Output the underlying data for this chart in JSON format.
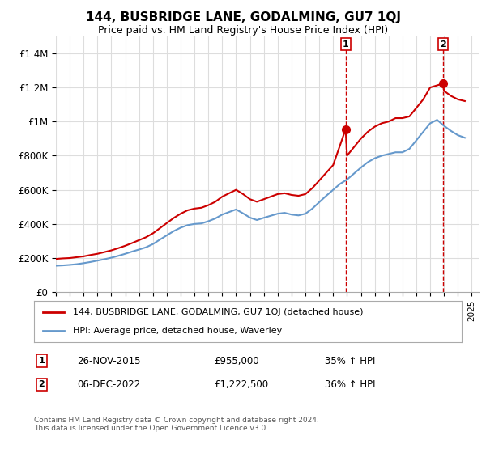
{
  "title": "144, BUSBRIDGE LANE, GODALMING, GU7 1QJ",
  "subtitle": "Price paid vs. HM Land Registry's House Price Index (HPI)",
  "ylabel_ticks": [
    "£0",
    "£200K",
    "£400K",
    "£600K",
    "£800K",
    "£1M",
    "£1.2M",
    "£1.4M"
  ],
  "ytick_values": [
    0,
    200000,
    400000,
    600000,
    800000,
    1000000,
    1200000,
    1400000
  ],
  "ylim": [
    0,
    1500000
  ],
  "xlim_start": 1995.0,
  "xlim_end": 2025.5,
  "red_color": "#cc0000",
  "blue_color": "#6699cc",
  "dashed_red": "#cc0000",
  "purchase1_x": 2015.9,
  "purchase1_y": 955000,
  "purchase1_label": "1",
  "purchase2_x": 2022.92,
  "purchase2_y": 1222500,
  "purchase2_label": "2",
  "legend_red_label": "144, BUSBRIDGE LANE, GODALMING, GU7 1QJ (detached house)",
  "legend_blue_label": "HPI: Average price, detached house, Waverley",
  "annotation1_date": "26-NOV-2015",
  "annotation1_price": "£955,000",
  "annotation1_hpi": "35% ↑ HPI",
  "annotation2_date": "06-DEC-2022",
  "annotation2_price": "£1,222,500",
  "annotation2_hpi": "36% ↑ HPI",
  "footer": "Contains HM Land Registry data © Crown copyright and database right 2024.\nThis data is licensed under the Open Government Licence v3.0.",
  "background_color": "#ffffff",
  "grid_color": "#dddddd",
  "hpi_red_data": {
    "x": [
      1995.0,
      1995.5,
      1996.0,
      1996.5,
      1997.0,
      1997.5,
      1998.0,
      1998.5,
      1999.0,
      1999.5,
      2000.0,
      2000.5,
      2001.0,
      2001.5,
      2002.0,
      2002.5,
      2003.0,
      2003.5,
      2004.0,
      2004.5,
      2005.0,
      2005.5,
      2006.0,
      2006.5,
      2007.0,
      2007.5,
      2008.0,
      2008.5,
      2009.0,
      2009.5,
      2010.0,
      2010.5,
      2011.0,
      2011.5,
      2012.0,
      2012.5,
      2013.0,
      2013.5,
      2014.0,
      2014.5,
      2015.0,
      2015.9,
      2016.0,
      2016.5,
      2017.0,
      2017.5,
      2018.0,
      2018.5,
      2019.0,
      2019.5,
      2020.0,
      2020.5,
      2021.0,
      2021.5,
      2022.0,
      2022.92,
      2023.0,
      2023.5,
      2024.0,
      2024.5
    ],
    "y": [
      195000,
      198000,
      200000,
      205000,
      210000,
      218000,
      225000,
      235000,
      245000,
      258000,
      272000,
      288000,
      305000,
      322000,
      345000,
      375000,
      405000,
      435000,
      460000,
      480000,
      490000,
      495000,
      510000,
      530000,
      560000,
      580000,
      600000,
      575000,
      545000,
      530000,
      545000,
      560000,
      575000,
      580000,
      570000,
      565000,
      575000,
      610000,
      655000,
      700000,
      745000,
      955000,
      800000,
      850000,
      900000,
      940000,
      970000,
      990000,
      1000000,
      1020000,
      1020000,
      1030000,
      1080000,
      1130000,
      1200000,
      1222500,
      1180000,
      1150000,
      1130000,
      1120000
    ]
  },
  "hpi_blue_data": {
    "x": [
      1995.0,
      1995.5,
      1996.0,
      1996.5,
      1997.0,
      1997.5,
      1998.0,
      1998.5,
      1999.0,
      1999.5,
      2000.0,
      2000.5,
      2001.0,
      2001.5,
      2002.0,
      2002.5,
      2003.0,
      2003.5,
      2004.0,
      2004.5,
      2005.0,
      2005.5,
      2006.0,
      2006.5,
      2007.0,
      2007.5,
      2008.0,
      2008.5,
      2009.0,
      2009.5,
      2010.0,
      2010.5,
      2011.0,
      2011.5,
      2012.0,
      2012.5,
      2013.0,
      2013.5,
      2014.0,
      2014.5,
      2015.0,
      2015.5,
      2016.0,
      2016.5,
      2017.0,
      2017.5,
      2018.0,
      2018.5,
      2019.0,
      2019.5,
      2020.0,
      2020.5,
      2021.0,
      2021.5,
      2022.0,
      2022.5,
      2023.0,
      2023.5,
      2024.0,
      2024.5
    ],
    "y": [
      155000,
      157000,
      160000,
      164000,
      170000,
      177000,
      185000,
      193000,
      202000,
      213000,
      225000,
      238000,
      250000,
      263000,
      282000,
      308000,
      333000,
      358000,
      378000,
      393000,
      400000,
      403000,
      416000,
      432000,
      455000,
      470000,
      485000,
      462000,
      437000,
      423000,
      436000,
      448000,
      460000,
      465000,
      455000,
      450000,
      460000,
      490000,
      528000,
      565000,
      600000,
      635000,
      660000,
      695000,
      730000,
      762000,
      785000,
      800000,
      810000,
      820000,
      820000,
      840000,
      890000,
      940000,
      990000,
      1010000,
      975000,
      945000,
      920000,
      905000
    ]
  }
}
